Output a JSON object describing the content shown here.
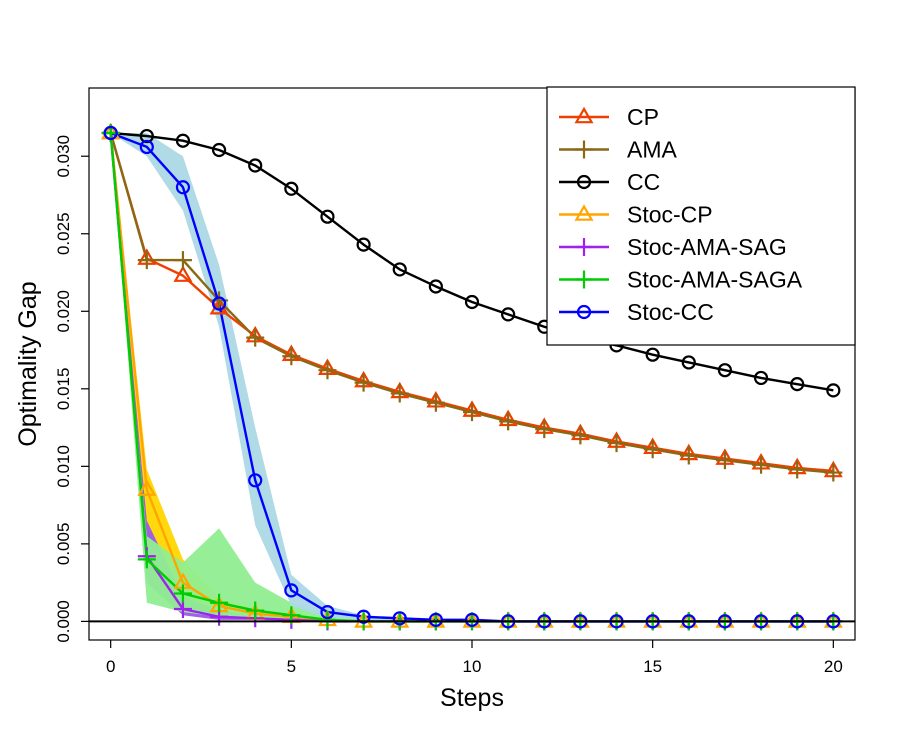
{
  "chart_data": {
    "type": "line",
    "xlabel": "Steps",
    "ylabel": "Optimality Gap",
    "xlim": [
      -0.6,
      20.6
    ],
    "ylim": [
      -0.0012,
      0.0344
    ],
    "xticks": [
      0,
      5,
      10,
      15,
      20
    ],
    "xtick_labels": [
      "0",
      "5",
      "10",
      "15",
      "20"
    ],
    "yticks": [
      0.0,
      0.005,
      0.01,
      0.015,
      0.02,
      0.025,
      0.03
    ],
    "ytick_labels": [
      "0.000",
      "0.005",
      "0.010",
      "0.015",
      "0.020",
      "0.025",
      "0.030"
    ],
    "hline": 0,
    "legend_position": "top-right",
    "bands": [
      {
        "name": "Stoc-CP band",
        "color": "#FFD700",
        "x": [
          0,
          1,
          2,
          3,
          4,
          5,
          6,
          7,
          8,
          9,
          10,
          11,
          12,
          13,
          14,
          15,
          16,
          17,
          18,
          19,
          20
        ],
        "lower": [
          0.0315,
          0.0045,
          0.0015,
          0.0006,
          0.0003,
          0.0002,
          0.0001,
          0,
          0,
          0,
          0,
          0,
          0,
          0,
          0,
          0,
          0,
          0,
          0,
          0,
          0
        ],
        "upper": [
          0.0315,
          0.0098,
          0.004,
          0.0015,
          0.0008,
          0.0004,
          0.0002,
          0.0001,
          0.0001,
          0,
          0,
          0,
          0,
          0,
          0,
          0,
          0,
          0,
          0,
          0,
          0
        ]
      },
      {
        "name": "Stoc-AMA-SAG band",
        "color": "#9B59E8",
        "x": [
          0,
          1,
          2,
          3,
          4,
          5,
          6,
          7,
          8,
          9,
          10,
          11,
          12,
          13,
          14,
          15,
          16,
          17,
          18,
          19,
          20
        ],
        "lower": [
          0.0315,
          0.0025,
          0.0004,
          0.0001,
          0.0001,
          0,
          0,
          0,
          0,
          0,
          0,
          0,
          0,
          0,
          0,
          0,
          0,
          0,
          0,
          0,
          0
        ],
        "upper": [
          0.0315,
          0.0065,
          0.0016,
          0.0007,
          0.0003,
          0.0002,
          0.0001,
          0,
          0,
          0,
          0,
          0,
          0,
          0,
          0,
          0,
          0,
          0,
          0,
          0,
          0
        ]
      },
      {
        "name": "Stoc-AMA-SAGA band",
        "color": "#90EE90",
        "x": [
          0,
          1,
          2,
          3,
          4,
          5,
          6,
          7,
          8,
          9,
          10,
          11,
          12,
          13,
          14,
          15,
          16,
          17,
          18,
          19,
          20
        ],
        "lower": [
          0.0315,
          0.0012,
          0.0006,
          0.0003,
          0.0001,
          0,
          0,
          0,
          0,
          0,
          0,
          0,
          0,
          0,
          0,
          0,
          0,
          0,
          0,
          0,
          0
        ],
        "upper": [
          0.0315,
          0.0055,
          0.0038,
          0.006,
          0.0025,
          0.0012,
          0.0005,
          0.0002,
          0.0001,
          0,
          0,
          0,
          0,
          0,
          0,
          0,
          0,
          0,
          0,
          0,
          0
        ]
      },
      {
        "name": "Stoc-CC band",
        "color": "#ADD8E6",
        "x": [
          0,
          1,
          2,
          3,
          4,
          5,
          6,
          7,
          8,
          9,
          10,
          11,
          12,
          13,
          14,
          15,
          16,
          17,
          18,
          19,
          20
        ],
        "lower": [
          0.0315,
          0.03,
          0.0265,
          0.019,
          0.0062,
          0.001,
          0.0002,
          0.0001,
          0,
          0,
          0,
          0,
          0,
          0,
          0,
          0,
          0,
          0,
          0,
          0,
          0
        ],
        "upper": [
          0.0315,
          0.0315,
          0.03,
          0.023,
          0.0125,
          0.003,
          0.001,
          0.0004,
          0.0002,
          0.0001,
          0,
          0,
          0,
          0,
          0,
          0,
          0,
          0,
          0,
          0,
          0
        ]
      }
    ],
    "series": [
      {
        "name": "CP",
        "color": "#EE4000",
        "marker": "triangle",
        "x": [
          0,
          1,
          2,
          3,
          4,
          5,
          6,
          7,
          8,
          9,
          10,
          11,
          12,
          13,
          14,
          15,
          16,
          17,
          18,
          19,
          20
        ],
        "values": [
          0.0315,
          0.0234,
          0.0223,
          0.0202,
          0.0184,
          0.0172,
          0.0163,
          0.0155,
          0.0148,
          0.0142,
          0.0136,
          0.013,
          0.0125,
          0.0121,
          0.0116,
          0.0112,
          0.0108,
          0.0105,
          0.0102,
          0.0099,
          0.0097
        ]
      },
      {
        "name": "AMA",
        "color": "#8B6914",
        "marker": "plus",
        "x": [
          0,
          1,
          2,
          3,
          4,
          5,
          6,
          7,
          8,
          9,
          10,
          11,
          12,
          13,
          14,
          15,
          16,
          17,
          18,
          19,
          20
        ],
        "values": [
          0.0315,
          0.0233,
          0.0233,
          0.0207,
          0.0183,
          0.0171,
          0.0162,
          0.0154,
          0.0147,
          0.0141,
          0.0135,
          0.0129,
          0.0124,
          0.012,
          0.0115,
          0.0111,
          0.0107,
          0.0104,
          0.0101,
          0.0098,
          0.0096
        ]
      },
      {
        "name": "CC",
        "color": "#000000",
        "marker": "circle",
        "x": [
          0,
          1,
          2,
          3,
          4,
          5,
          6,
          7,
          8,
          9,
          10,
          11,
          12,
          13,
          14,
          15,
          16,
          17,
          18,
          19,
          20
        ],
        "values": [
          0.0315,
          0.0313,
          0.031,
          0.0304,
          0.0294,
          0.0279,
          0.0261,
          0.0243,
          0.0227,
          0.0216,
          0.0206,
          0.0198,
          0.019,
          0.0183,
          0.0178,
          0.0172,
          0.0167,
          0.0162,
          0.0157,
          0.0153,
          0.0149
        ]
      },
      {
        "name": "Stoc-CP",
        "color": "#FFA500",
        "marker": "triangle",
        "x": [
          0,
          1,
          2,
          3,
          4,
          5,
          6,
          7,
          8,
          9,
          10,
          11,
          12,
          13,
          14,
          15,
          16,
          17,
          18,
          19,
          20
        ],
        "values": [
          0.0315,
          0.0085,
          0.0025,
          0.001,
          0.0005,
          0.0003,
          0.0001,
          0,
          0,
          0,
          0,
          0,
          0,
          0,
          0,
          0,
          0,
          0,
          0,
          0,
          0
        ]
      },
      {
        "name": "Stoc-AMA-SAG",
        "color": "#A020F0",
        "marker": "plus",
        "x": [
          0,
          1,
          2,
          3,
          4,
          5,
          6,
          7,
          8,
          9,
          10,
          11,
          12,
          13,
          14,
          15,
          16,
          17,
          18,
          19,
          20
        ],
        "values": [
          0.0315,
          0.0042,
          0.0008,
          0.0003,
          0.0002,
          0.0001,
          0,
          0,
          0,
          0,
          0,
          0,
          0,
          0,
          0,
          0,
          0,
          0,
          0,
          0,
          0
        ]
      },
      {
        "name": "Stoc-AMA-SAGA",
        "color": "#00CD00",
        "marker": "plus",
        "x": [
          0,
          1,
          2,
          3,
          4,
          5,
          6,
          7,
          8,
          9,
          10,
          11,
          12,
          13,
          14,
          15,
          16,
          17,
          18,
          19,
          20
        ],
        "values": [
          0.0315,
          0.004,
          0.0018,
          0.0012,
          0.0007,
          0.0004,
          0.0001,
          0,
          0,
          0,
          0,
          0,
          0,
          0,
          0,
          0,
          0,
          0,
          0,
          0,
          0
        ]
      },
      {
        "name": "Stoc-CC",
        "color": "#0000FF",
        "marker": "circle",
        "x": [
          0,
          1,
          2,
          3,
          4,
          5,
          6,
          7,
          8,
          9,
          10,
          11,
          12,
          13,
          14,
          15,
          16,
          17,
          18,
          19,
          20
        ],
        "values": [
          0.0315,
          0.0306,
          0.028,
          0.0205,
          0.0091,
          0.002,
          0.0006,
          0.0003,
          0.0002,
          0.0001,
          0.0001,
          0,
          0,
          0,
          0,
          0,
          0,
          0,
          0,
          0,
          0
        ]
      }
    ]
  }
}
